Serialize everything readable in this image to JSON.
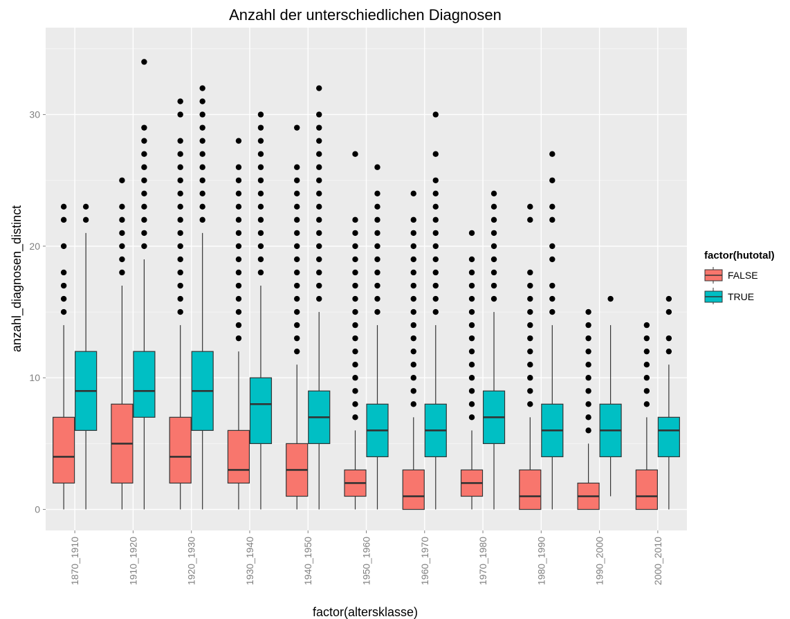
{
  "chart_data": {
    "type": "box",
    "title": "Anzahl der unterschiedlichen Diagnosen",
    "xlabel": "factor(altersklasse)",
    "ylabel": "anzahl_diagnosen_distinct",
    "ylim": [
      -1.6,
      36.6
    ],
    "yticks": [
      0,
      10,
      20,
      30
    ],
    "grid": true,
    "legend": {
      "title": "factor(hutotal)",
      "position": "right",
      "entries": [
        "FALSE",
        "TRUE"
      ]
    },
    "colors": {
      "FALSE": "#f8766d",
      "TRUE": "#00bfc4",
      "panel": "#ebebeb",
      "grid": "#ffffff",
      "outline": "#333333"
    },
    "categories": [
      "1870_1910",
      "1910_1920",
      "1920_1930",
      "1930_1940",
      "1940_1950",
      "1950_1960",
      "1960_1970",
      "1970_1980",
      "1980_1990",
      "1990_2000",
      "2000_2010"
    ],
    "series": [
      {
        "name": "FALSE",
        "boxes": [
          {
            "min": 0,
            "q1": 2,
            "median": 4,
            "q3": 7,
            "max": 14,
            "outliers": [
              15,
              16,
              17,
              18,
              20,
              22,
              23
            ]
          },
          {
            "min": 0,
            "q1": 2,
            "median": 5,
            "q3": 8,
            "max": 17,
            "outliers": [
              18,
              19,
              20,
              21,
              22,
              23,
              25
            ]
          },
          {
            "min": 0,
            "q1": 2,
            "median": 4,
            "q3": 7,
            "max": 14,
            "outliers": [
              15,
              16,
              17,
              18,
              19,
              20,
              21,
              22,
              23,
              24,
              25,
              26,
              27,
              28,
              30,
              31
            ]
          },
          {
            "min": 0,
            "q1": 2,
            "median": 3,
            "q3": 6,
            "max": 12,
            "outliers": [
              13,
              14,
              15,
              16,
              17,
              18,
              19,
              20,
              21,
              22,
              23,
              24,
              25,
              26,
              28
            ]
          },
          {
            "min": 0,
            "q1": 1,
            "median": 3,
            "q3": 5,
            "max": 11,
            "outliers": [
              12,
              13,
              14,
              15,
              16,
              17,
              18,
              19,
              20,
              21,
              22,
              23,
              24,
              25,
              26,
              29
            ]
          },
          {
            "min": 0,
            "q1": 1,
            "median": 2,
            "q3": 3,
            "max": 6,
            "outliers": [
              7,
              8,
              9,
              10,
              11,
              12,
              13,
              14,
              15,
              16,
              17,
              18,
              19,
              20,
              21,
              22,
              27
            ]
          },
          {
            "min": 0,
            "q1": 0,
            "median": 1,
            "q3": 3,
            "max": 7,
            "outliers": [
              8,
              9,
              10,
              11,
              12,
              13,
              14,
              15,
              16,
              17,
              18,
              19,
              20,
              21,
              22,
              24
            ]
          },
          {
            "min": 0,
            "q1": 1,
            "median": 2,
            "q3": 3,
            "max": 6,
            "outliers": [
              7,
              8,
              9,
              10,
              11,
              12,
              13,
              14,
              15,
              16,
              17,
              18,
              19,
              21
            ]
          },
          {
            "min": 0,
            "q1": 0,
            "median": 1,
            "q3": 3,
            "max": 7,
            "outliers": [
              8,
              9,
              10,
              11,
              12,
              13,
              14,
              15,
              16,
              17,
              18,
              22,
              23
            ]
          },
          {
            "min": 0,
            "q1": 0,
            "median": 1,
            "q3": 2,
            "max": 5,
            "outliers": [
              6,
              7,
              8,
              9,
              10,
              11,
              12,
              13,
              14,
              15
            ]
          },
          {
            "min": 0,
            "q1": 0,
            "median": 1,
            "q3": 3,
            "max": 7,
            "outliers": [
              8,
              9,
              10,
              11,
              12,
              13,
              14
            ]
          }
        ]
      },
      {
        "name": "TRUE",
        "boxes": [
          {
            "min": 0,
            "q1": 6,
            "median": 9,
            "q3": 12,
            "max": 21,
            "outliers": [
              22,
              23
            ]
          },
          {
            "min": 0,
            "q1": 7,
            "median": 9,
            "q3": 12,
            "max": 19,
            "outliers": [
              20,
              21,
              22,
              23,
              24,
              25,
              26,
              27,
              28,
              29,
              34
            ]
          },
          {
            "min": 0,
            "q1": 6,
            "median": 9,
            "q3": 12,
            "max": 21,
            "outliers": [
              22,
              23,
              24,
              25,
              26,
              27,
              28,
              29,
              30,
              31,
              32
            ]
          },
          {
            "min": 0,
            "q1": 5,
            "median": 8,
            "q3": 10,
            "max": 17,
            "outliers": [
              18,
              19,
              20,
              21,
              22,
              23,
              24,
              25,
              26,
              27,
              28,
              29,
              30
            ]
          },
          {
            "min": 0,
            "q1": 5,
            "median": 7,
            "q3": 9,
            "max": 15,
            "outliers": [
              16,
              17,
              18,
              19,
              20,
              21,
              22,
              23,
              24,
              25,
              26,
              27,
              28,
              29,
              30,
              32
            ]
          },
          {
            "min": 0,
            "q1": 4,
            "median": 6,
            "q3": 8,
            "max": 14,
            "outliers": [
              15,
              16,
              17,
              18,
              19,
              20,
              21,
              22,
              23,
              24,
              26
            ]
          },
          {
            "min": 0,
            "q1": 4,
            "median": 6,
            "q3": 8,
            "max": 14,
            "outliers": [
              15,
              16,
              17,
              18,
              19,
              20,
              21,
              22,
              23,
              24,
              25,
              27,
              30
            ]
          },
          {
            "min": 0,
            "q1": 5,
            "median": 7,
            "q3": 9,
            "max": 15,
            "outliers": [
              16,
              17,
              18,
              19,
              20,
              21,
              22,
              23,
              24
            ]
          },
          {
            "min": 0,
            "q1": 4,
            "median": 6,
            "q3": 8,
            "max": 14,
            "outliers": [
              15,
              16,
              17,
              19,
              20,
              22,
              23,
              25,
              27
            ]
          },
          {
            "min": 1,
            "q1": 4,
            "median": 6,
            "q3": 8,
            "max": 14,
            "outliers": [
              16
            ]
          },
          {
            "min": 0,
            "q1": 4,
            "median": 6,
            "q3": 7,
            "max": 11,
            "outliers": [
              12,
              13,
              15,
              16
            ]
          }
        ]
      }
    ]
  }
}
